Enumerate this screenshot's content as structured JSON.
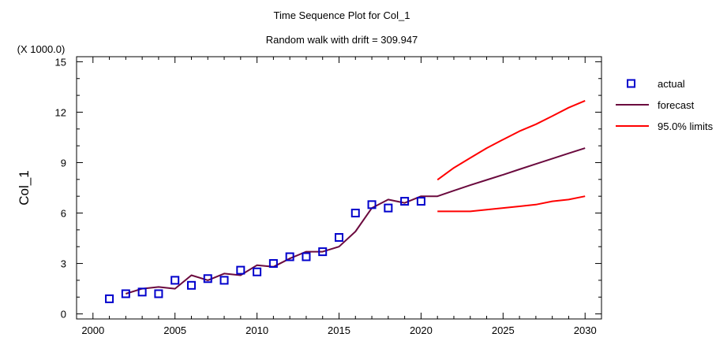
{
  "chart_data": {
    "type": "line",
    "title": "Time Sequence Plot for Col_1",
    "subtitle": "Random walk with drift = 309.947",
    "ylabel": "Col_1",
    "y_multiplier_label": "(X 1000.0)",
    "xlabel": "",
    "xlim": [
      1999,
      2031
    ],
    "ylim": [
      -0.3,
      15.3
    ],
    "x_ticks": [
      2000,
      2005,
      2010,
      2015,
      2020,
      2025,
      2030
    ],
    "y_ticks": [
      0,
      3,
      6,
      9,
      12,
      15
    ],
    "x_tick_labels": [
      "2000",
      "2005",
      "2010",
      "2015",
      "2020",
      "2025",
      "2030"
    ],
    "y_tick_labels": [
      "0",
      "3",
      "6",
      "9",
      "12",
      "15"
    ],
    "grid": false,
    "legend_position": "right",
    "series": [
      {
        "name": "actual",
        "style": "square-markers",
        "color": "#0000CC",
        "x": [
          2001,
          2002,
          2003,
          2004,
          2005,
          2006,
          2007,
          2008,
          2009,
          2010,
          2011,
          2012,
          2013,
          2014,
          2015,
          2016,
          2017,
          2018,
          2019,
          2020
        ],
        "y": [
          0.9,
          1.2,
          1.3,
          1.2,
          2.0,
          1.7,
          2.1,
          2.0,
          2.6,
          2.5,
          3.0,
          3.4,
          3.4,
          3.7,
          4.55,
          6.0,
          6.5,
          6.3,
          6.7,
          6.7
        ]
      },
      {
        "name": "forecast",
        "style": "line",
        "color": "#6B0A3E",
        "x": [
          2002,
          2003,
          2004,
          2005,
          2006,
          2007,
          2008,
          2009,
          2010,
          2011,
          2012,
          2013,
          2014,
          2015,
          2016,
          2017,
          2018,
          2019,
          2020,
          2021,
          2022,
          2023,
          2024,
          2025,
          2026,
          2027,
          2028,
          2029,
          2030
        ],
        "y": [
          1.2,
          1.5,
          1.6,
          1.5,
          2.3,
          2.0,
          2.4,
          2.3,
          2.9,
          2.8,
          3.3,
          3.7,
          3.7,
          4.0,
          4.9,
          6.3,
          6.8,
          6.6,
          7.0,
          7.0,
          7.33,
          7.66,
          7.97,
          8.28,
          8.6,
          8.92,
          9.24,
          9.55,
          9.86
        ]
      },
      {
        "name": "95.0% limits",
        "style": "line",
        "color": "#FF0000",
        "x": [
          2021,
          2022,
          2023,
          2024,
          2025,
          2026,
          2027,
          2028,
          2029,
          2030
        ],
        "y": [
          7.98,
          8.69,
          9.28,
          9.86,
          10.37,
          10.87,
          11.28,
          11.77,
          12.27,
          12.68
        ]
      },
      {
        "name": "",
        "style": "line",
        "color": "#FF0000",
        "x": [
          2021,
          2022,
          2023,
          2024,
          2025,
          2026,
          2027,
          2028,
          2029,
          2030
        ],
        "y": [
          6.1,
          6.1,
          6.1,
          6.2,
          6.3,
          6.4,
          6.5,
          6.7,
          6.8,
          7.0
        ]
      }
    ]
  }
}
